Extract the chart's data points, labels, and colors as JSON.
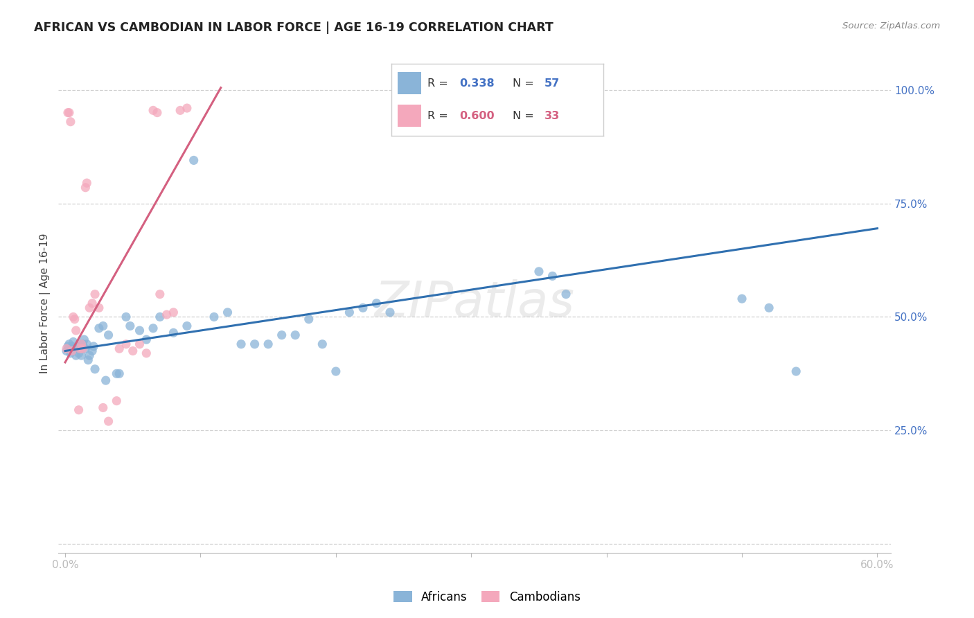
{
  "title": "AFRICAN VS CAMBODIAN IN LABOR FORCE | AGE 16-19 CORRELATION CHART",
  "source": "Source: ZipAtlas.com",
  "ylabel": "In Labor Force | Age 16-19",
  "xlim": [
    -0.005,
    0.61
  ],
  "ylim": [
    -0.02,
    1.08
  ],
  "xticks": [
    0.0,
    0.1,
    0.2,
    0.3,
    0.4,
    0.5,
    0.6
  ],
  "xticklabels": [
    "0.0%",
    "",
    "",
    "",
    "",
    "",
    "60.0%"
  ],
  "ytick_positions": [
    0.0,
    0.25,
    0.5,
    0.75,
    1.0
  ],
  "yticklabels": [
    "",
    "25.0%",
    "50.0%",
    "75.0%",
    "100.0%"
  ],
  "background_color": "#ffffff",
  "grid_color": "#d0d0d0",
  "watermark": "ZIPatlas",
  "africans_color": "#8ab4d8",
  "cambodians_color": "#f4a8bc",
  "african_line_color": "#3070b0",
  "cambodian_line_color": "#d46080",
  "african_scatter_x": [
    0.001,
    0.002,
    0.003,
    0.003,
    0.004,
    0.005,
    0.006,
    0.007,
    0.008,
    0.009,
    0.01,
    0.011,
    0.012,
    0.013,
    0.014,
    0.015,
    0.016,
    0.017,
    0.018,
    0.02,
    0.021,
    0.022,
    0.025,
    0.028,
    0.03,
    0.032,
    0.038,
    0.04,
    0.045,
    0.048,
    0.055,
    0.06,
    0.065,
    0.07,
    0.08,
    0.09,
    0.095,
    0.11,
    0.12,
    0.13,
    0.14,
    0.15,
    0.16,
    0.17,
    0.18,
    0.19,
    0.2,
    0.21,
    0.22,
    0.23,
    0.24,
    0.35,
    0.36,
    0.37,
    0.5,
    0.52,
    0.54
  ],
  "african_scatter_y": [
    0.425,
    0.435,
    0.44,
    0.43,
    0.42,
    0.435,
    0.445,
    0.43,
    0.415,
    0.435,
    0.42,
    0.44,
    0.415,
    0.44,
    0.45,
    0.43,
    0.44,
    0.405,
    0.415,
    0.425,
    0.435,
    0.385,
    0.475,
    0.48,
    0.36,
    0.46,
    0.375,
    0.375,
    0.5,
    0.48,
    0.47,
    0.45,
    0.475,
    0.5,
    0.465,
    0.48,
    0.845,
    0.5,
    0.51,
    0.44,
    0.44,
    0.44,
    0.46,
    0.46,
    0.495,
    0.44,
    0.38,
    0.51,
    0.52,
    0.53,
    0.51,
    0.6,
    0.59,
    0.55,
    0.54,
    0.52,
    0.38
  ],
  "cambodian_scatter_x": [
    0.001,
    0.002,
    0.003,
    0.004,
    0.005,
    0.006,
    0.007,
    0.008,
    0.01,
    0.011,
    0.012,
    0.013,
    0.015,
    0.016,
    0.018,
    0.02,
    0.022,
    0.025,
    0.028,
    0.032,
    0.038,
    0.04,
    0.045,
    0.05,
    0.055,
    0.06,
    0.065,
    0.068,
    0.07,
    0.075,
    0.08,
    0.085,
    0.09
  ],
  "cambodian_scatter_y": [
    0.43,
    0.95,
    0.95,
    0.93,
    0.425,
    0.5,
    0.495,
    0.47,
    0.295,
    0.43,
    0.44,
    0.43,
    0.785,
    0.795,
    0.52,
    0.53,
    0.55,
    0.52,
    0.3,
    0.27,
    0.315,
    0.43,
    0.44,
    0.425,
    0.44,
    0.42,
    0.955,
    0.95,
    0.55,
    0.505,
    0.51,
    0.955,
    0.96
  ],
  "african_trend_x": [
    0.0,
    0.6
  ],
  "african_trend_y": [
    0.425,
    0.695
  ],
  "cambodian_trend_x": [
    0.0,
    0.115
  ],
  "cambodian_trend_y": [
    0.4,
    1.005
  ]
}
